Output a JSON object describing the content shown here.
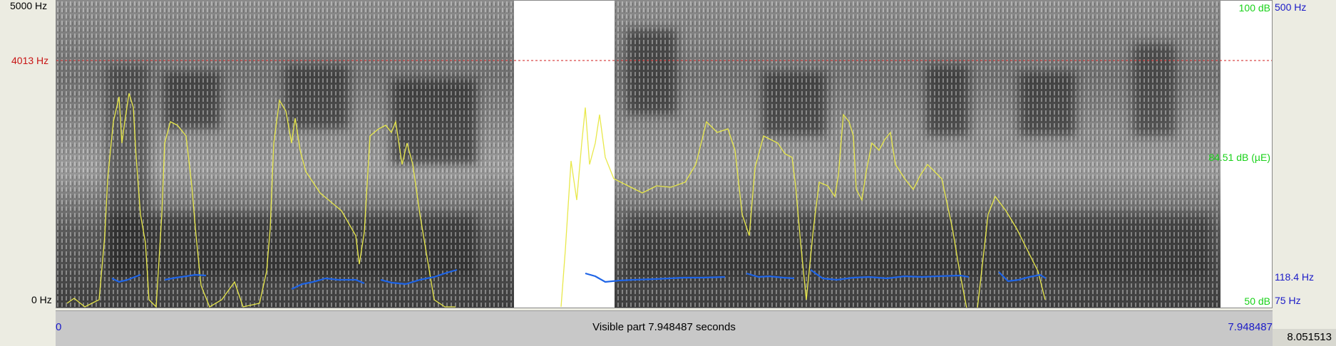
{
  "left_axis": {
    "top_freq": "5000 Hz",
    "cursor_freq": "4013 Hz",
    "bottom_freq": "0 Hz"
  },
  "right_axis": {
    "intensity_top": "100 dB",
    "intensity_mid": "84.51 dB (µE)",
    "intensity_bottom": "50 dB",
    "pitch_top": "500 Hz",
    "pitch_cursor": "118.4 Hz",
    "pitch_bottom": "75 Hz"
  },
  "time_bar": {
    "start": "0",
    "label": "Visible part 7.948487 seconds",
    "end": "7.948487",
    "total": "8.051513"
  },
  "colors": {
    "cursor_line": "#d21e1e",
    "intensity_curve": "#e8e84a",
    "pitch_curve": "#1e64e6",
    "frequency_labels": "#c81414",
    "pitch_labels": "#1a1ac8",
    "intensity_labels": "#19d219"
  }
}
